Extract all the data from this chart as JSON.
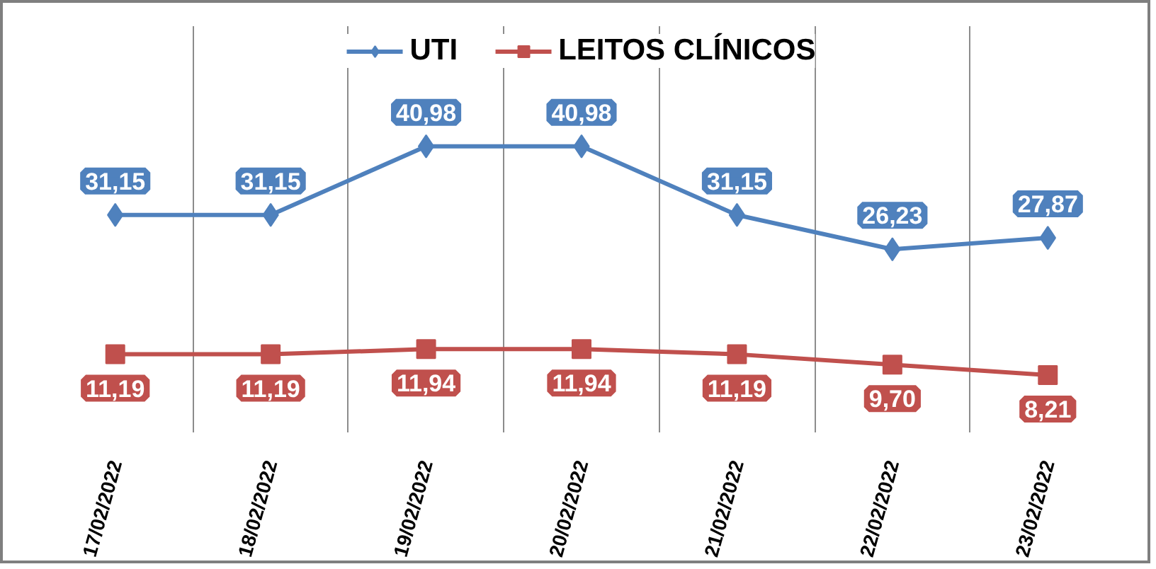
{
  "chart_data": {
    "type": "line",
    "categories": [
      "17/02/2022",
      "18/02/2022",
      "19/02/2022",
      "20/02/2022",
      "21/02/2022",
      "22/02/2022",
      "23/02/2022"
    ],
    "series": [
      {
        "name": "UTI",
        "color": "#4f81bd",
        "marker": "diamond",
        "values": [
          31.15,
          31.15,
          40.98,
          40.98,
          31.15,
          26.23,
          27.87
        ],
        "value_labels": [
          "31,15",
          "31,15",
          "40,98",
          "40,98",
          "31,15",
          "26,23",
          "27,87"
        ]
      },
      {
        "name": "LEITOS CLÍNICOS",
        "color": "#c0504d",
        "marker": "square",
        "values": [
          11.19,
          11.19,
          11.94,
          11.94,
          11.19,
          9.7,
          8.21
        ],
        "value_labels": [
          "11,19",
          "11,19",
          "11,94",
          "11,94",
          "11,19",
          "9,70",
          "8,21"
        ]
      }
    ],
    "legend": "top",
    "grid": "x",
    "line_style": "solid"
  }
}
